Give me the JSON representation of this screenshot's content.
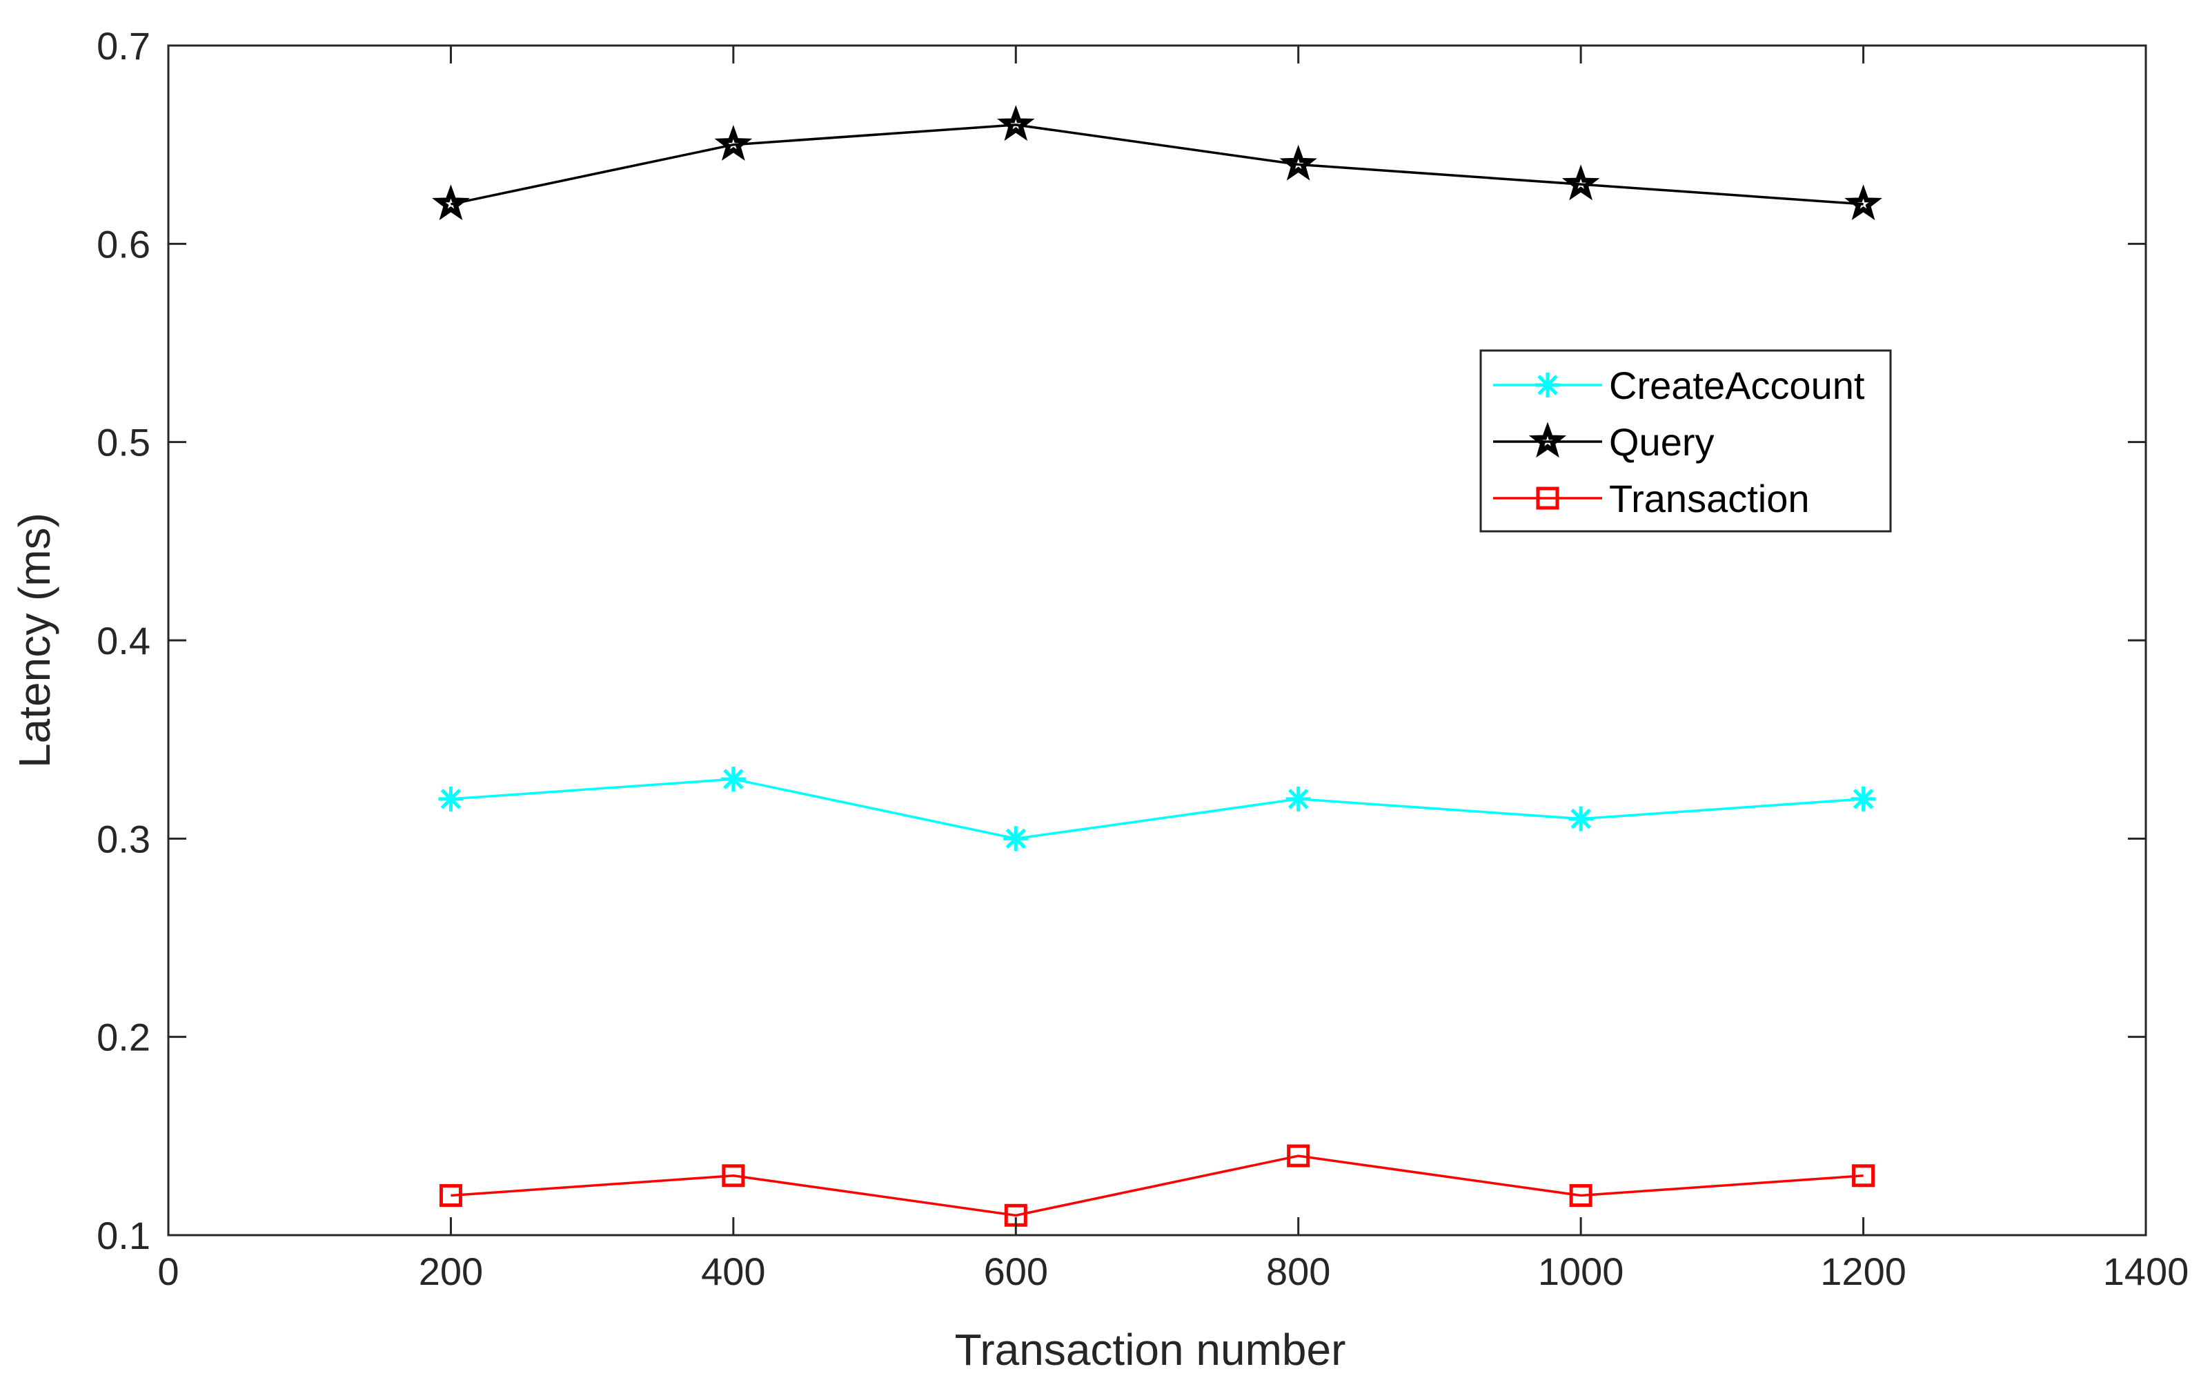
{
  "chart_data": {
    "type": "line",
    "title": "",
    "xlabel": "Transaction number",
    "ylabel": "Latency (ms)",
    "xlim": [
      0,
      1400
    ],
    "ylim": [
      0.1,
      0.7
    ],
    "xticks": [
      0,
      200,
      400,
      600,
      800,
      1000,
      1200,
      1400
    ],
    "xtick_labels": [
      "0",
      "200",
      "400",
      "600",
      "800",
      "1000",
      "1200",
      "1400"
    ],
    "yticks": [
      0.1,
      0.2,
      0.3,
      0.4,
      0.5,
      0.6,
      0.7
    ],
    "ytick_labels": [
      "0.1",
      "0.2",
      "0.3",
      "0.4",
      "0.5",
      "0.6",
      "0.7"
    ],
    "grid": false,
    "legend_position": "upper-right",
    "x": [
      200,
      400,
      600,
      800,
      1000,
      1200
    ],
    "series": [
      {
        "name": "CreateAccount",
        "color": "#00ffff",
        "marker": "asterisk",
        "values": [
          0.32,
          0.33,
          0.3,
          0.32,
          0.31,
          0.32
        ]
      },
      {
        "name": "Query",
        "color": "#000000",
        "marker": "pentagram",
        "values": [
          0.62,
          0.65,
          0.66,
          0.64,
          0.63,
          0.62
        ]
      },
      {
        "name": "Transaction",
        "color": "#ff0000",
        "marker": "square",
        "values": [
          0.12,
          0.13,
          0.11,
          0.14,
          0.12,
          0.13
        ]
      }
    ]
  }
}
